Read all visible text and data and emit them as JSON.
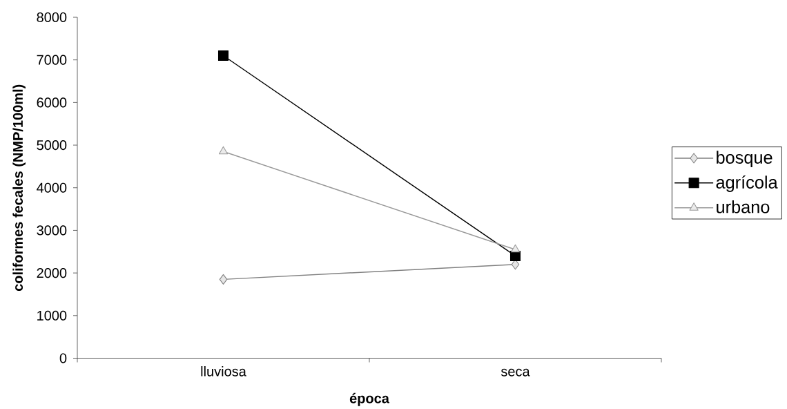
{
  "chart_data": {
    "type": "line",
    "xlabel": "época",
    "ylabel": "coliformes fecales (NMP/100ml)",
    "categories": [
      "lluviosa",
      "seca"
    ],
    "series": [
      {
        "name": "bosque",
        "color": "#808080",
        "marker": "diamond",
        "values": [
          1850,
          2200
        ]
      },
      {
        "name": "agrícola",
        "color": "#000000",
        "marker": "square",
        "values": [
          7100,
          2400
        ]
      },
      {
        "name": "urbano",
        "color": "#999999",
        "marker": "triangle",
        "values": [
          4850,
          2550
        ]
      }
    ],
    "ylim": [
      0,
      8000
    ],
    "yticks": [
      0,
      1000,
      2000,
      3000,
      4000,
      5000,
      6000,
      7000,
      8000
    ],
    "legend": "right",
    "line_style": "solid"
  }
}
